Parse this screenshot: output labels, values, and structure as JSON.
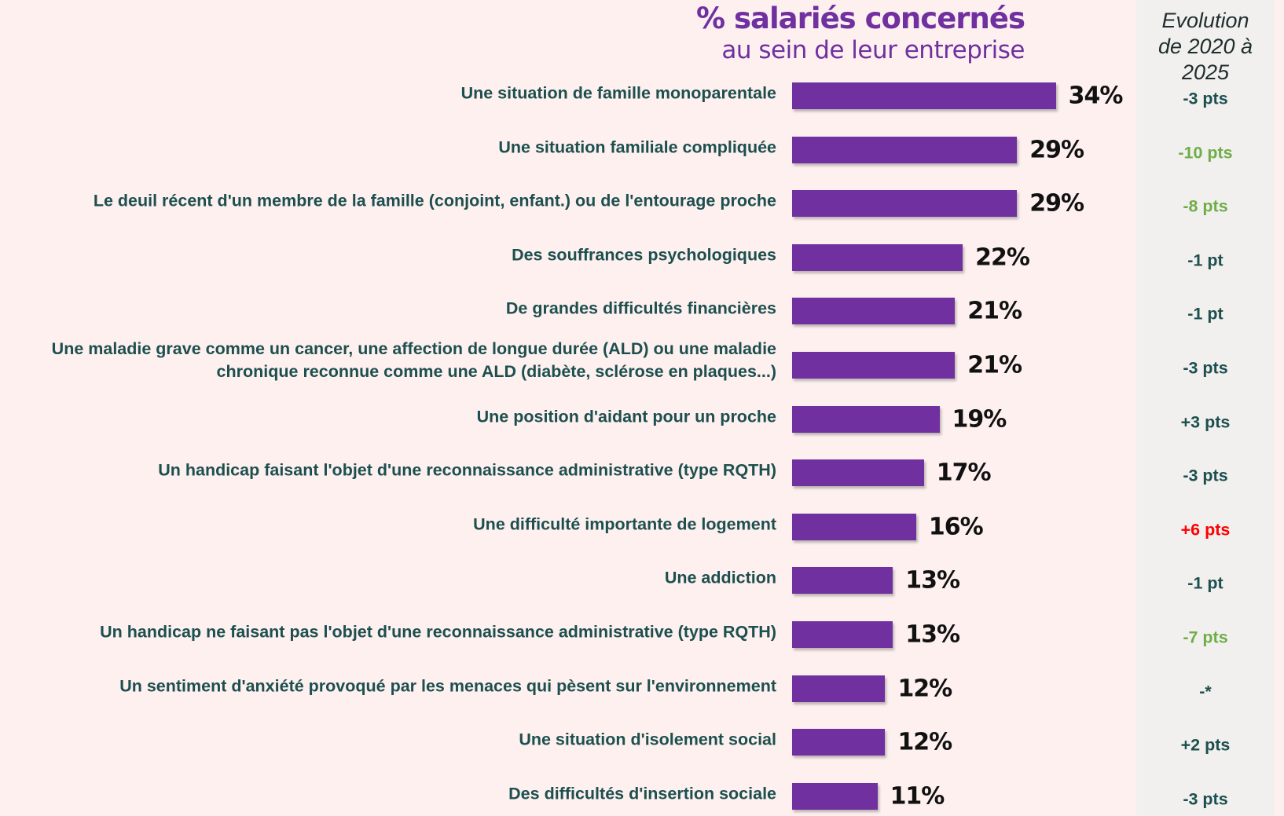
{
  "chart_data": {
    "type": "bar",
    "orientation": "horizontal",
    "title": "% salariés concernés",
    "subtitle": "au sein de leur entreprise",
    "categories": [
      "Une situation de famille monoparentale",
      "Une situation familiale compliquée",
      "Le deuil récent d'un membre de la famille (conjoint, enfant.) ou de l'entourage proche",
      "Des souffrances psychologiques",
      "De grandes difficultés financières",
      "Une maladie grave comme un cancer, une affection de longue durée (ALD) ou une maladie chronique reconnue comme une ALD (diabète, sclérose en plaques...)",
      "Une position d'aidant pour un proche",
      "Un handicap faisant l'objet d'une reconnaissance administrative (type RQTH)",
      "Une difficulté importante de logement",
      "Une addiction",
      "Un handicap ne faisant pas l'objet d'une reconnaissance administrative (type RQTH)",
      "Un sentiment d'anxiété provoqué par les menaces qui pèsent sur l'environnement",
      "Une situation d'isolement social",
      "Des difficultés d'insertion sociale"
    ],
    "values": [
      34,
      29,
      29,
      22,
      21,
      21,
      19,
      17,
      16,
      13,
      13,
      12,
      12,
      11
    ],
    "value_labels": [
      "34%",
      "29%",
      "29%",
      "22%",
      "21%",
      "21%",
      "19%",
      "17%",
      "16%",
      "13%",
      "13%",
      "12%",
      "12%",
      "11%"
    ],
    "color": "#7030a0",
    "evolution": {
      "title": "Evolution de 2020 à 2025",
      "labels": [
        "-3 pts",
        "-10 pts",
        "-8 pts",
        "-1 pt",
        "-1 pt",
        "-3 pts",
        "+3 pts",
        "-3 pts",
        "+6 pts",
        "-1 pt",
        "-7 pts",
        "-*",
        "+2 pts",
        "-3 pts"
      ],
      "colors": [
        "#1d4f4f",
        "#70ad47",
        "#70ad47",
        "#1d4f4f",
        "#1d4f4f",
        "#1d4f4f",
        "#1d4f4f",
        "#1d4f4f",
        "#ff0000",
        "#1d4f4f",
        "#70ad47",
        "#1d4f4f",
        "#1d4f4f",
        "#1d4f4f"
      ]
    }
  }
}
